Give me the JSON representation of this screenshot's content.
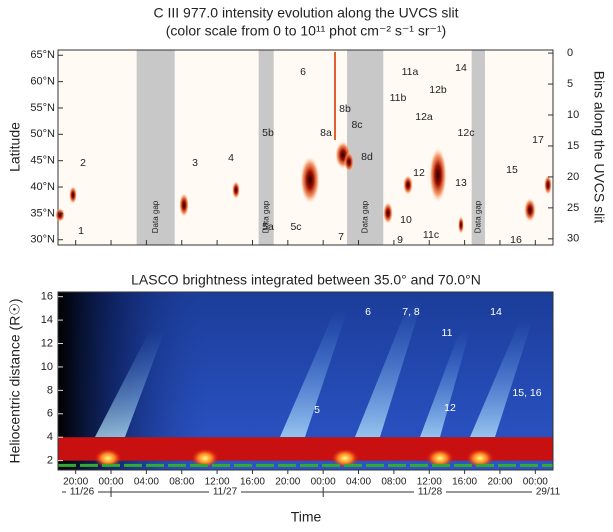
{
  "chart_data": [
    {
      "type": "heatmap",
      "title": "C III 977.0 intensity evolution along the UVCS slit",
      "subtitle": "(color scale from 0 to 10¹¹ phot cm⁻² s⁻¹ sr⁻¹)",
      "ylabel": "Latitude",
      "y2label": "Bins along the UVCS slit",
      "ylim": [
        29,
        66
      ],
      "yticks": [
        {
          "value": 30,
          "label": "30°N"
        },
        {
          "value": 35,
          "label": "35°N"
        },
        {
          "value": 40,
          "label": "40°N"
        },
        {
          "value": 45,
          "label": "45°N"
        },
        {
          "value": 50,
          "label": "50°N"
        },
        {
          "value": 55,
          "label": "55°N"
        },
        {
          "value": 60,
          "label": "60°N"
        },
        {
          "value": 65,
          "label": "65°N"
        }
      ],
      "y2lim": [
        -0.5,
        31
      ],
      "y2ticks": [
        0,
        5,
        10,
        15,
        20,
        25,
        30
      ],
      "data_gaps": [
        {
          "start": 26.9,
          "end": 31.2,
          "label": "Data gap"
        },
        {
          "start": 40.7,
          "end": 42.4,
          "label": "Data gap"
        },
        {
          "start": 50.7,
          "end": 54.8,
          "label": "Data gap"
        },
        {
          "start": 64.8,
          "end": 66.3,
          "label": "Data gap"
        }
      ],
      "annotations": [
        "1",
        "2",
        "3",
        "4",
        "5a",
        "5b",
        "5c",
        "6",
        "7",
        "8a",
        "8b",
        "8c",
        "8d",
        "9",
        "10",
        "11a",
        "11b",
        "11c",
        "12",
        "12a",
        "12b",
        "12c",
        "13",
        "14",
        "15",
        "16",
        "17"
      ]
    },
    {
      "type": "heatmap",
      "title": "LASCO brightness integrated between 35.0° and 70.0°N",
      "ylabel": "Heliocentric distance (R☉)",
      "xlabel": "Time",
      "ylim": [
        1.2,
        16.4
      ],
      "yticks": [
        2,
        4,
        6,
        8,
        10,
        12,
        14,
        16
      ],
      "xlim": [
        18,
        74
      ],
      "xticks": [
        {
          "value": 20,
          "label": "20:00"
        },
        {
          "value": 24,
          "label": "00:00"
        },
        {
          "value": 28,
          "label": "04:00"
        },
        {
          "value": 32,
          "label": "08:00"
        },
        {
          "value": 36,
          "label": "12:00"
        },
        {
          "value": 40,
          "label": "16:00"
        },
        {
          "value": 44,
          "label": "20:00"
        },
        {
          "value": 48,
          "label": "00:00"
        },
        {
          "value": 52,
          "label": "04:00"
        },
        {
          "value": 56,
          "label": "08:00"
        },
        {
          "value": 60,
          "label": "12:00"
        },
        {
          "value": 64,
          "label": "16:00"
        },
        {
          "value": 68,
          "label": "20:00"
        },
        {
          "value": 72,
          "label": "00:00"
        }
      ],
      "date_labels": [
        "11/26",
        "11/27",
        "11/28",
        "29/11"
      ],
      "annotations": [
        "5",
        "6",
        "7, 8",
        "11",
        "14",
        "12",
        "15, 16"
      ]
    }
  ]
}
